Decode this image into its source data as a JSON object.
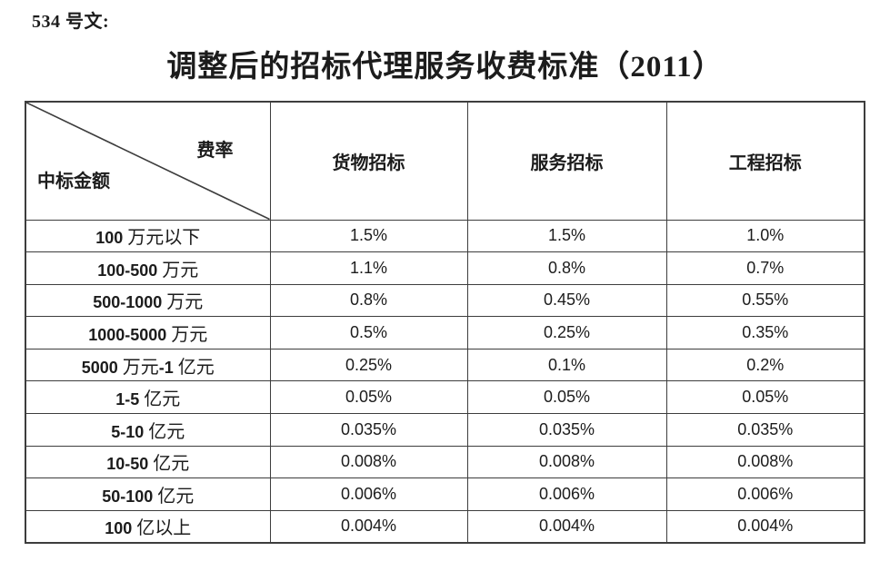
{
  "page": {
    "doc_ref": "534 号文:",
    "title": "调整后的招标代理服务收费标准（2011）"
  },
  "table": {
    "corner": {
      "top_right": "费率",
      "bottom_left": "中标金额"
    },
    "columns": [
      "货物招标",
      "服务招标",
      "工程招标"
    ],
    "rows": [
      {
        "label": "100 万元以下",
        "values": [
          "1.5%",
          "1.5%",
          "1.0%"
        ]
      },
      {
        "label": "100-500 万元",
        "values": [
          "1.1%",
          "0.8%",
          "0.7%"
        ]
      },
      {
        "label": "500-1000 万元",
        "values": [
          "0.8%",
          "0.45%",
          "0.55%"
        ]
      },
      {
        "label": "1000-5000 万元",
        "values": [
          "0.5%",
          "0.25%",
          "0.35%"
        ]
      },
      {
        "label": "5000 万元-1 亿元",
        "values": [
          "0.25%",
          "0.1%",
          "0.2%"
        ]
      },
      {
        "label": "1-5 亿元",
        "values": [
          "0.05%",
          "0.05%",
          "0.05%"
        ]
      },
      {
        "label": "5-10 亿元",
        "values": [
          "0.035%",
          "0.035%",
          "0.035%"
        ]
      },
      {
        "label": "10-50 亿元",
        "values": [
          "0.008%",
          "0.008%",
          "0.008%"
        ]
      },
      {
        "label": "50-100 亿元",
        "values": [
          "0.006%",
          "0.006%",
          "0.006%"
        ]
      },
      {
        "label": "100 亿以上",
        "values": [
          "0.004%",
          "0.004%",
          "0.004%"
        ]
      }
    ]
  },
  "colors": {
    "text": "#1c1c1c",
    "border": "#3d3d3d",
    "background": "#ffffff"
  }
}
